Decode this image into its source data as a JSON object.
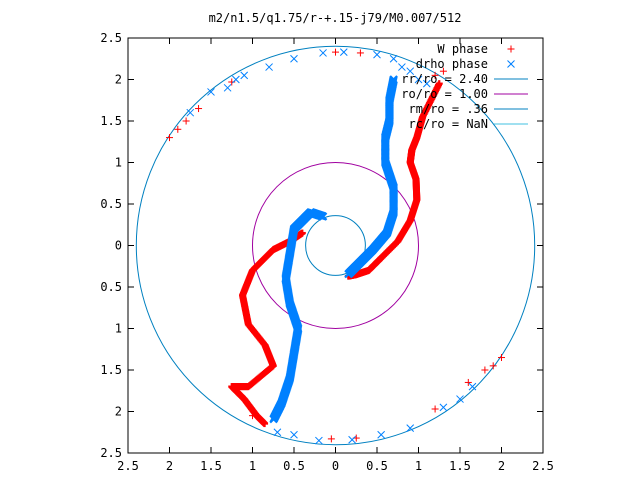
{
  "chart_data": {
    "type": "scatter",
    "title": "m2/n1.5/q1.75/r-+.15-j79/M0.007/512",
    "xlim": [
      -2.5,
      2.5
    ],
    "ylim": [
      -2.5,
      2.5
    ],
    "x_ticks": [
      -2.5,
      -2,
      -1.5,
      -1,
      -0.5,
      0,
      0.5,
      1,
      1.5,
      2,
      2.5
    ],
    "y_ticks": [
      -2.5,
      -2,
      -1.5,
      -1,
      -0.5,
      0,
      0.5,
      1,
      1.5,
      2,
      2.5
    ],
    "x_tick_labels": [
      "2.5",
      "2",
      "1.5",
      "1",
      "0.5",
      "0",
      "0.5",
      "1",
      "1.5",
      "2",
      "2.5"
    ],
    "y_tick_labels": [
      "2.5",
      "2",
      "1.5",
      "1",
      "0.5",
      "0",
      "0.5",
      "1",
      "1.5",
      "2",
      "2.5"
    ],
    "grid": false,
    "legend_position": "top-right",
    "series": [
      {
        "name": "W phase",
        "marker": "plus",
        "color": "#ff0000",
        "arms": [
          [
            [
              1.25,
              1.95
            ],
            [
              1.05,
              1.55
            ],
            [
              0.98,
              1.3
            ],
            [
              0.92,
              1.15
            ],
            [
              0.9,
              1.0
            ],
            [
              0.97,
              0.8
            ],
            [
              0.98,
              0.55
            ],
            [
              0.9,
              0.3
            ],
            [
              0.75,
              0.05
            ],
            [
              0.55,
              -0.15
            ],
            [
              0.4,
              -0.3
            ],
            [
              0.25,
              -0.35
            ],
            [
              0.15,
              -0.37
            ]
          ],
          [
            [
              -0.4,
              0.15
            ],
            [
              -0.55,
              0.05
            ],
            [
              -0.75,
              -0.05
            ],
            [
              -1.0,
              -0.3
            ],
            [
              -1.12,
              -0.6
            ],
            [
              -1.05,
              -0.95
            ],
            [
              -0.85,
              -1.2
            ],
            [
              -0.75,
              -1.45
            ],
            [
              -1.05,
              -1.7
            ],
            [
              -1.25,
              -1.7
            ],
            [
              -1.1,
              -1.85
            ],
            [
              -0.95,
              -2.05
            ],
            [
              -0.85,
              -2.15
            ]
          ]
        ],
        "scatter": [
          [
            -2.0,
            1.3
          ],
          [
            -1.9,
            1.4
          ],
          [
            -1.8,
            1.5
          ],
          [
            -1.25,
            1.97
          ],
          [
            -1.65,
            1.65
          ],
          [
            0.0,
            2.33
          ],
          [
            0.3,
            2.32
          ],
          [
            1.2,
            2.05
          ],
          [
            1.3,
            2.1
          ],
          [
            1.8,
            -1.5
          ],
          [
            1.9,
            -1.45
          ],
          [
            2.0,
            -1.35
          ],
          [
            1.6,
            -1.65
          ],
          [
            1.2,
            -1.97
          ],
          [
            -0.05,
            -2.33
          ],
          [
            0.25,
            -2.32
          ],
          [
            -0.9,
            -2.1
          ],
          [
            -1.0,
            -2.05
          ]
        ]
      },
      {
        "name": "drho phase",
        "marker": "x",
        "color": "#0080ff",
        "arms": [
          [
            [
              0.7,
              2.0
            ],
            [
              0.65,
              1.75
            ],
            [
              0.65,
              1.5
            ],
            [
              0.6,
              1.3
            ],
            [
              0.6,
              1.0
            ],
            [
              0.7,
              0.7
            ],
            [
              0.7,
              0.4
            ],
            [
              0.62,
              0.15
            ],
            [
              0.45,
              -0.05
            ],
            [
              0.3,
              -0.2
            ],
            [
              0.15,
              -0.35
            ]
          ],
          [
            [
              -0.15,
              0.35
            ],
            [
              -0.3,
              0.4
            ],
            [
              -0.5,
              0.2
            ],
            [
              -0.55,
              -0.1
            ],
            [
              -0.6,
              -0.4
            ],
            [
              -0.55,
              -0.7
            ],
            [
              -0.45,
              -1.0
            ],
            [
              -0.5,
              -1.3
            ],
            [
              -0.55,
              -1.6
            ],
            [
              -0.65,
              -1.9
            ],
            [
              -0.75,
              -2.1
            ]
          ]
        ],
        "scatter": [
          [
            -0.15,
            2.32
          ],
          [
            -0.8,
            2.15
          ],
          [
            -0.5,
            2.25
          ],
          [
            -1.1,
            2.05
          ],
          [
            -1.3,
            1.9
          ],
          [
            -1.5,
            1.85
          ],
          [
            -1.2,
            2.0
          ],
          [
            -1.75,
            1.6
          ],
          [
            0.1,
            2.33
          ],
          [
            0.5,
            2.3
          ],
          [
            0.7,
            2.25
          ],
          [
            0.8,
            2.15
          ],
          [
            0.9,
            2.1
          ],
          [
            1.0,
            2.0
          ],
          [
            1.1,
            1.95
          ],
          [
            1.65,
            -1.7
          ],
          [
            1.5,
            -1.85
          ],
          [
            1.3,
            -1.95
          ],
          [
            0.9,
            -2.2
          ],
          [
            0.55,
            -2.28
          ],
          [
            0.2,
            -2.34
          ],
          [
            -0.2,
            -2.35
          ],
          [
            -0.5,
            -2.28
          ],
          [
            -0.7,
            -2.25
          ]
        ]
      }
    ],
    "circles": [
      {
        "label": "rr/ro = 2.40",
        "radius": 2.4,
        "color": "#0080c0"
      },
      {
        "label": "ro/ro = 1.00",
        "radius": 1.0,
        "color": "#a000a0"
      },
      {
        "label": "rm/ro = .36",
        "radius": 0.36,
        "color": "#0080c0"
      },
      {
        "label": "rc/ro = NaN",
        "radius": null,
        "color": "#40c0e0"
      }
    ]
  }
}
